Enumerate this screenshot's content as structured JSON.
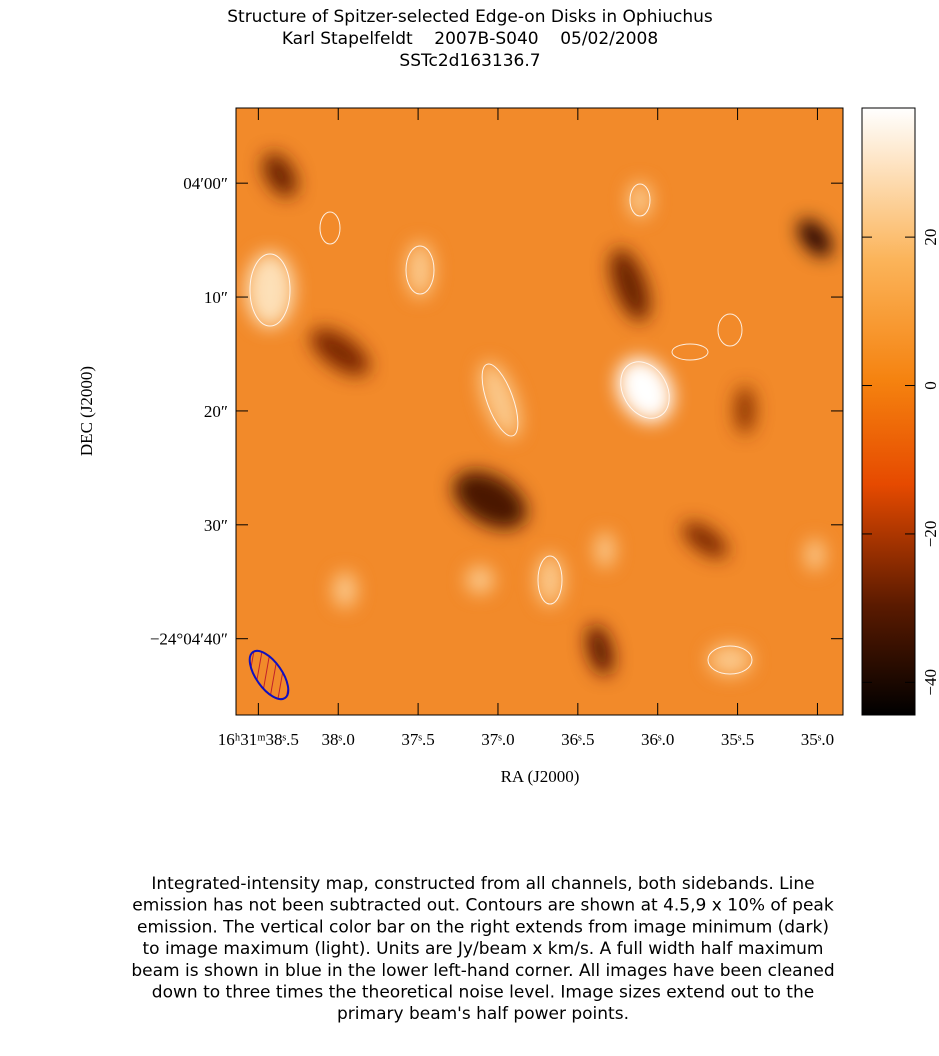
{
  "header": {
    "title": "Structure of Spitzer-selected Edge-on Disks in Ophiuchus",
    "line2": "Karl Stapelfeldt    2007B-S040    05/02/2008",
    "line3": "SSTc2d163136.7"
  },
  "chart_data": {
    "type": "image",
    "xlabel": "RA  (J2000)",
    "ylabel": "DEC  (J2000)",
    "xlim": [
      38.64,
      34.84
    ],
    "xticks": [
      {
        "value": 38.5,
        "label": "16ʰ31ᵐ38ˢ.5"
      },
      {
        "value": 38.0,
        "label": "38ˢ.0"
      },
      {
        "value": 37.5,
        "label": "37ˢ.5"
      },
      {
        "value": 37.0,
        "label": "37ˢ.0"
      },
      {
        "value": 36.5,
        "label": "36ˢ.5"
      },
      {
        "value": 36.0,
        "label": "36ˢ.0"
      },
      {
        "value": 35.5,
        "label": "35ˢ.5"
      },
      {
        "value": 35.0,
        "label": "35ˢ.0"
      }
    ],
    "ylim": [
      46.7,
      -6.6
    ],
    "yticks": [
      {
        "value": 0,
        "label": "04′00″"
      },
      {
        "value": 10,
        "label": "10″"
      },
      {
        "value": 20,
        "label": "20″"
      },
      {
        "value": 30,
        "label": "30″"
      },
      {
        "value": 40,
        "label": "−24°04′40″"
      }
    ],
    "colorbar": {
      "lim": [
        -44.4,
        37.4
      ],
      "ticks": [
        {
          "value": -40,
          "label": "−40"
        },
        {
          "value": -20,
          "label": "−20"
        },
        0,
        20
      ]
    }
  },
  "caption": [
    "Integrated-intensity map, constructed from all channels, both sidebands.  Line",
    "emission has not been subtracted out.  Contours are shown at 4.5,9 x 10% of peak",
    "emission.  The vertical color bar on the right extends from image minimum (dark)",
    "to image maximum (light).  Units are Jy/beam x km/s.  A full width half maximum",
    "beam is shown in blue in the lower left-hand corner.  All images have been cleaned",
    "down to three times the theoretical noise level.  Image sizes extend out to the",
    "primary beam's half power points."
  ]
}
